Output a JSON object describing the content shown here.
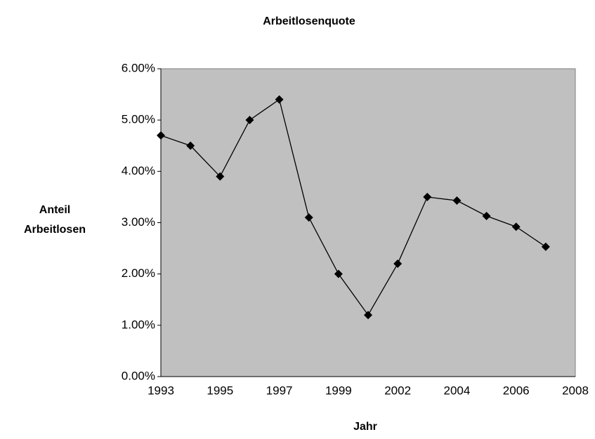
{
  "chart_data": {
    "type": "line",
    "title": "Arbeitlosenquote",
    "x_label": "Jahr",
    "y_label": [
      "Anteil",
      "Arbeitlosen"
    ],
    "categories": [
      "1993",
      null,
      "1995",
      null,
      "1997",
      null,
      "1999",
      null,
      "2002",
      null,
      "2004",
      null,
      "2006",
      null,
      "2008"
    ],
    "series": [
      {
        "name": "Arbeitlosenquote",
        "color": "#000000",
        "values": [
          4.7,
          4.5,
          3.9,
          5.0,
          5.4,
          3.1,
          2.0,
          1.2,
          2.2,
          3.5,
          3.43,
          3.13,
          2.92,
          2.53,
          null
        ]
      }
    ],
    "ylim": [
      0,
      6
    ],
    "yticks": [
      {
        "value": 0,
        "label": "0.00%"
      },
      {
        "value": 1,
        "label": "1.00%"
      },
      {
        "value": 2,
        "label": "2.00%"
      },
      {
        "value": 3,
        "label": "3.00%"
      },
      {
        "value": 4,
        "label": "4.00%"
      },
      {
        "value": 5,
        "label": "5.00%"
      },
      {
        "value": 6,
        "label": "6.00%"
      }
    ],
    "plot_background": "#c0c0c0",
    "grid": false
  }
}
